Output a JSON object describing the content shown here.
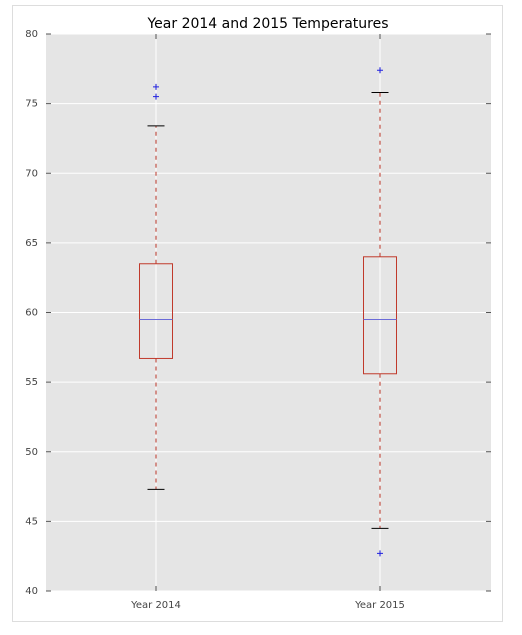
{
  "chart_data": {
    "type": "box",
    "title": "Year 2014 and 2015 Temperatures",
    "categories": [
      "Year 2014",
      "Year 2015"
    ],
    "boxes": [
      {
        "whislo": 47.3,
        "q1": 56.7,
        "med": 59.5,
        "q3": 63.5,
        "whishi": 73.4,
        "fliers": [
          76.2,
          75.5
        ]
      },
      {
        "whislo": 44.5,
        "q1": 55.6,
        "med": 59.5,
        "q3": 64.0,
        "whishi": 75.8,
        "fliers": [
          77.4,
          42.7
        ]
      }
    ],
    "box_color": "#c0392b",
    "median_color": "#6b6bd8",
    "flier_color": "#2020e0",
    "cap_color": "#000000",
    "ylim": [
      40,
      80
    ],
    "yticks": [
      40,
      45,
      50,
      55,
      60,
      65,
      70,
      75,
      80
    ],
    "grid": true
  }
}
